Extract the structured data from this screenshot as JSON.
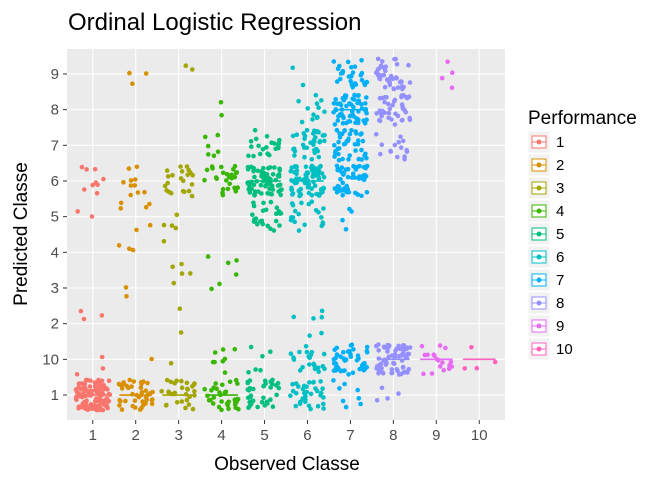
{
  "chart_data": {
    "type": "scatter",
    "subtype": "jitter-with-boxplot",
    "title": "Ordinal Logistic Regression",
    "xlabel": "Observed Classe",
    "ylabel": "Predicted Classe",
    "x_categories": [
      "1",
      "2",
      "3",
      "4",
      "5",
      "6",
      "7",
      "8",
      "9",
      "10"
    ],
    "y_categories": [
      "1",
      "10",
      "2",
      "3",
      "4",
      "5",
      "6",
      "7",
      "8",
      "9"
    ],
    "legend": {
      "title": "Performance",
      "position": "right",
      "entries": [
        "1",
        "2",
        "3",
        "4",
        "5",
        "6",
        "7",
        "8",
        "9",
        "10"
      ]
    },
    "colors": [
      "#F8766D",
      "#D89000",
      "#A3A500",
      "#39B600",
      "#00BF7D",
      "#00BFC4",
      "#00B0F6",
      "#9590FF",
      "#E76BF3",
      "#FF62BC"
    ],
    "panel_background": "#EBEBEB",
    "grid_color": "#FFFFFF",
    "counts": [
      {
        "observed": "1",
        "predicted": {
          "1": 130,
          "10": 3,
          "2": 3,
          "5": 2,
          "6": 9
        }
      },
      {
        "observed": "2",
        "predicted": {
          "1": 45,
          "10": 1,
          "3": 2,
          "4": 3,
          "5": 6,
          "6": 10,
          "9": 3
        }
      },
      {
        "observed": "3",
        "predicted": {
          "1": 30,
          "10": 1,
          "2": 2,
          "3": 3,
          "4": 3,
          "5": 4,
          "6": 22,
          "9": 2
        }
      },
      {
        "observed": "4",
        "predicted": {
          "1": 35,
          "10": 8,
          "3": 3,
          "4": 3,
          "6": 28,
          "7": 6,
          "8": 2
        }
      },
      {
        "observed": "5",
        "predicted": {
          "1": 35,
          "10": 6,
          "5": 25,
          "6": 70,
          "7": 20
        }
      },
      {
        "observed": "6",
        "predicted": {
          "1": 35,
          "10": 22,
          "2": 6,
          "5": 20,
          "6": 75,
          "7": 35,
          "8": 12,
          "9": 2
        }
      },
      {
        "observed": "7",
        "predicted": {
          "1": 8,
          "10": 45,
          "5": 4,
          "6": 55,
          "7": 40,
          "8": 60,
          "9": 28
        }
      },
      {
        "observed": "8",
        "predicted": {
          "1": 4,
          "10": 65,
          "7": 15,
          "8": 40,
          "9": 40
        }
      },
      {
        "observed": "9",
        "predicted": {
          "10": 18,
          "9": 4
        }
      },
      {
        "observed": "10",
        "predicted": {
          "10": 4
        }
      }
    ]
  }
}
